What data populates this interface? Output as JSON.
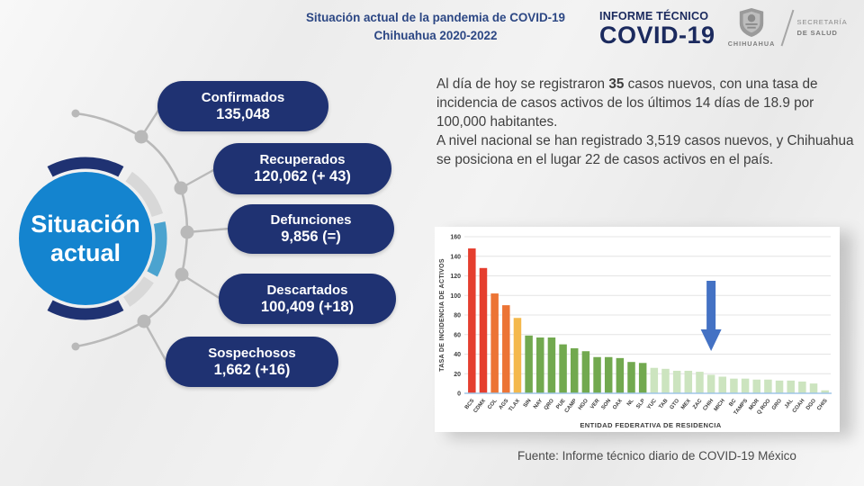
{
  "header": {
    "title_line1": "Situación actual de la pandemia de COVID-19",
    "title_line2": "Chihuahua 2020-2022",
    "report_label": "INFORME TÉCNICO",
    "report_title": "COVID-19",
    "logo": {
      "state": "CHIHUAHUA",
      "secretary_line1": "SECRETARÍA",
      "secretary_line2": "DE SALUD"
    }
  },
  "badge": {
    "line1": "Situación",
    "line2": "actual"
  },
  "stats": {
    "items": [
      {
        "label": "Confirmados",
        "value": "135,048"
      },
      {
        "label": "Recuperados",
        "value": "120,062 (+ 43)"
      },
      {
        "label": "Defunciones",
        "value": "9,856 (=)"
      },
      {
        "label": "Descartados",
        "value": "100,409 (+18)"
      },
      {
        "label": "Sospechosos",
        "value": "1,662 (+16)"
      }
    ]
  },
  "summary": {
    "p1_before": "Al día de hoy se registraron ",
    "p1_bold": "35",
    "p1_after": " casos nuevos, con una tasa de incidencia de casos activos de los últimos 14 días de 18.9 por 100,000 habitantes.",
    "p2": "A nivel nacional se han registrado 3,519 casos nuevos, y Chihuahua se posiciona en el lugar 22 de casos activos en el país."
  },
  "chart_data": {
    "type": "bar",
    "title": "",
    "xlabel": "ENTIDAD FEDERATIVA DE RESIDENCIA",
    "ylabel": "TASA DE INCIDENCIA DE ACTIVOS",
    "ylim": [
      0,
      160
    ],
    "ytick_step": 20,
    "grid": true,
    "legend": "none",
    "categories": [
      "BCS",
      "CDMX",
      "COL",
      "AGS",
      "TLAX",
      "SIN",
      "NAY",
      "QRO",
      "PUE",
      "CAMP",
      "HGO",
      "VER",
      "SON",
      "OAX",
      "NL",
      "SLP",
      "YUC",
      "TAB",
      "GTO",
      "MEX",
      "ZAC",
      "CHIH",
      "MICH",
      "BC",
      "TAMPS",
      "MOR",
      "Q ROO",
      "GRO",
      "JAL",
      "COAH",
      "DGO",
      "CHIS"
    ],
    "values": [
      148,
      128,
      102,
      90,
      77,
      59,
      57,
      57,
      50,
      46,
      43,
      37,
      37,
      36,
      32,
      31,
      26,
      25,
      23,
      23,
      22,
      18.9,
      17,
      15,
      15,
      14,
      14,
      13,
      13,
      12,
      10,
      3
    ],
    "bar_colors": [
      "#e53e2e",
      "#e53e2e",
      "#ec7435",
      "#ec7435",
      "#f4b84c",
      "#72a94f",
      "#72a94f",
      "#72a94f",
      "#72a94f",
      "#72a94f",
      "#72a94f",
      "#72a94f",
      "#72a94f",
      "#72a94f",
      "#72a94f",
      "#72a94f",
      "#cce4bf",
      "#cce4bf",
      "#cce4bf",
      "#cce4bf",
      "#cce4bf",
      "#cce4bf",
      "#cce4bf",
      "#cce4bf",
      "#cce4bf",
      "#cce4bf",
      "#cce4bf",
      "#cce4bf",
      "#cce4bf",
      "#cce4bf",
      "#cce4bf",
      "#cce4bf"
    ],
    "highlight": {
      "target": "CHIH",
      "marker": "down-arrow",
      "color": "#4472c4"
    }
  },
  "footer": {
    "source": "Fuente: Informe técnico diario de COVID-19 México"
  },
  "colors": {
    "pill_navy": "#1f3272",
    "badge_blue": "#1484cf",
    "ring_light_blue": "#4ba3cf",
    "ring_gray": "#d8d8d8",
    "header_navy": "#1b2a5e",
    "arrow_blue": "#4472c4"
  }
}
